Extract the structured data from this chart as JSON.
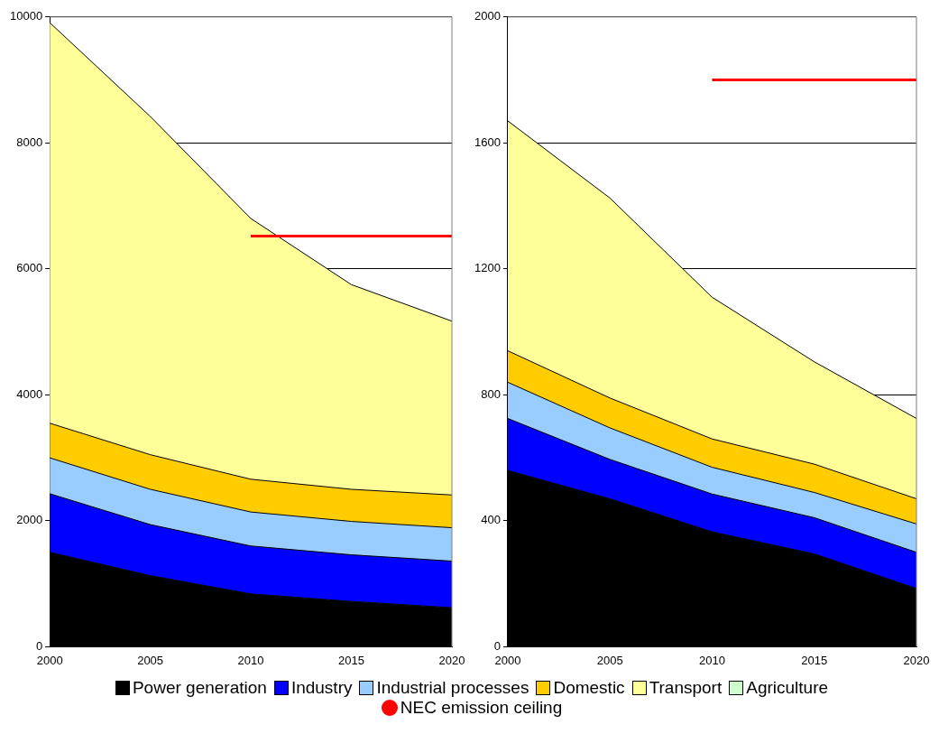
{
  "chart_data": [
    {
      "type": "area",
      "stacked": true,
      "x": [
        2000,
        2005,
        2010,
        2015,
        2020
      ],
      "xlim": [
        2000,
        2020
      ],
      "xticks": [
        2000,
        2005,
        2010,
        2015,
        2020
      ],
      "ylim": [
        0,
        10000
      ],
      "yticks": [
        0,
        2000,
        4000,
        6000,
        8000,
        10000
      ],
      "grid": "y",
      "legend": "bottom",
      "series": [
        {
          "name": "Power generation",
          "color": "#000000",
          "values": [
            1500,
            1130,
            840,
            720,
            620
          ]
        },
        {
          "name": "Industry",
          "color": "#0000ff",
          "values": [
            930,
            810,
            760,
            740,
            740
          ]
        },
        {
          "name": "Industrial processes",
          "color": "#99ccff",
          "values": [
            570,
            560,
            540,
            530,
            530
          ]
        },
        {
          "name": "Domestic",
          "color": "#ffcc00",
          "values": [
            550,
            550,
            520,
            510,
            520
          ]
        },
        {
          "name": "Transport",
          "color": "#ffff99",
          "values": [
            6360,
            5370,
            4140,
            3250,
            2760
          ]
        },
        {
          "name": "Agriculture",
          "color": "#ccffcc",
          "values": [
            null,
            null,
            null,
            null,
            null
          ]
        },
        {
          "name": "NEC emission ceiling",
          "type": "line",
          "color": "#ff0000",
          "values": [
            null,
            null,
            6520,
            6520,
            6520
          ]
        }
      ]
    },
    {
      "type": "area",
      "stacked": true,
      "x": [
        2000,
        2005,
        2010,
        2015,
        2020
      ],
      "xlim": [
        2000,
        2020
      ],
      "xticks": [
        2000,
        2005,
        2010,
        2015,
        2020
      ],
      "ylim": [
        0,
        2000
      ],
      "yticks": [
        0,
        400,
        800,
        1200,
        1600,
        2000
      ],
      "grid": "y",
      "series": [
        {
          "color": "#000000",
          "values": [
            560,
            470,
            365,
            295,
            185
          ]
        },
        {
          "color": "#0000ff",
          "values": [
            165,
            125,
            120,
            115,
            115
          ]
        },
        {
          "color": "#99ccff",
          "values": [
            115,
            100,
            85,
            80,
            90
          ]
        },
        {
          "color": "#ffcc00",
          "values": [
            100,
            95,
            90,
            90,
            80
          ]
        },
        {
          "color": "#ffff99",
          "values": [
            730,
            635,
            450,
            325,
            255
          ]
        },
        {
          "color": "#ccffcc",
          "values": [
            null,
            null,
            null,
            null,
            null
          ]
        },
        {
          "type": "line",
          "color": "#ff0000",
          "values": [
            null,
            null,
            1800,
            1800,
            1800
          ]
        }
      ]
    }
  ]
}
